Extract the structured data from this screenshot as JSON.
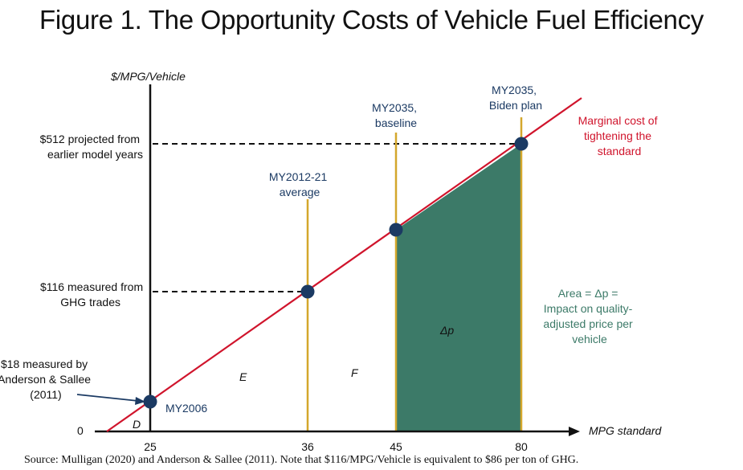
{
  "title": "Figure 1. The Opportunity Costs of Vehicle Fuel Efficiency",
  "source": "Source: Mulligan (2020) and Anderson & Sallee (2011).  Note that $116/MPG/Vehicle is equivalent to $86 per ton of GHG.",
  "chart_data": {
    "type": "line",
    "ylabel": "$/MPG/Vehicle",
    "xlabel": "MPG standard",
    "x_ticks": [
      "25",
      "36",
      "45",
      "80"
    ],
    "y_zero_label": "0",
    "y_labels": [
      {
        "value": 512,
        "lines": [
          "$512 projected from",
          "earlier model years"
        ]
      },
      {
        "value": 116,
        "lines": [
          "$116 measured from",
          "GHG trades"
        ]
      },
      {
        "value": 18,
        "lines": [
          "$18 measured by",
          "Anderson & Sallee",
          "(2011)"
        ]
      }
    ],
    "series": [
      {
        "name": "Marginal cost of tightening the standard",
        "name_lines": [
          "Marginal cost of",
          "tightening the",
          "standard"
        ],
        "color": "#d0142c"
      }
    ],
    "points": [
      {
        "x": "25",
        "y": 18,
        "label_lines": [
          "MY2006"
        ]
      },
      {
        "x": "36",
        "y": 116,
        "label_lines": [
          "MY2012-21",
          "average"
        ]
      },
      {
        "x": "45",
        "y": 200,
        "label_lines": [
          "MY2035,",
          "baseline"
        ]
      },
      {
        "x": "80",
        "y": 512,
        "label_lines": [
          "MY2035,",
          "Biden plan"
        ]
      }
    ],
    "regions": [
      {
        "label": "D"
      },
      {
        "label": "E"
      },
      {
        "label": "F"
      },
      {
        "label": "Δp"
      }
    ],
    "area_annotation_lines": [
      "Area = Δp =",
      "Impact on quality-",
      "adjusted price per",
      "vehicle"
    ],
    "colors": {
      "cost_line": "#d0142c",
      "points": "#1b3a63",
      "verticals": "#d4a72c",
      "area": "#3c7a68"
    }
  }
}
